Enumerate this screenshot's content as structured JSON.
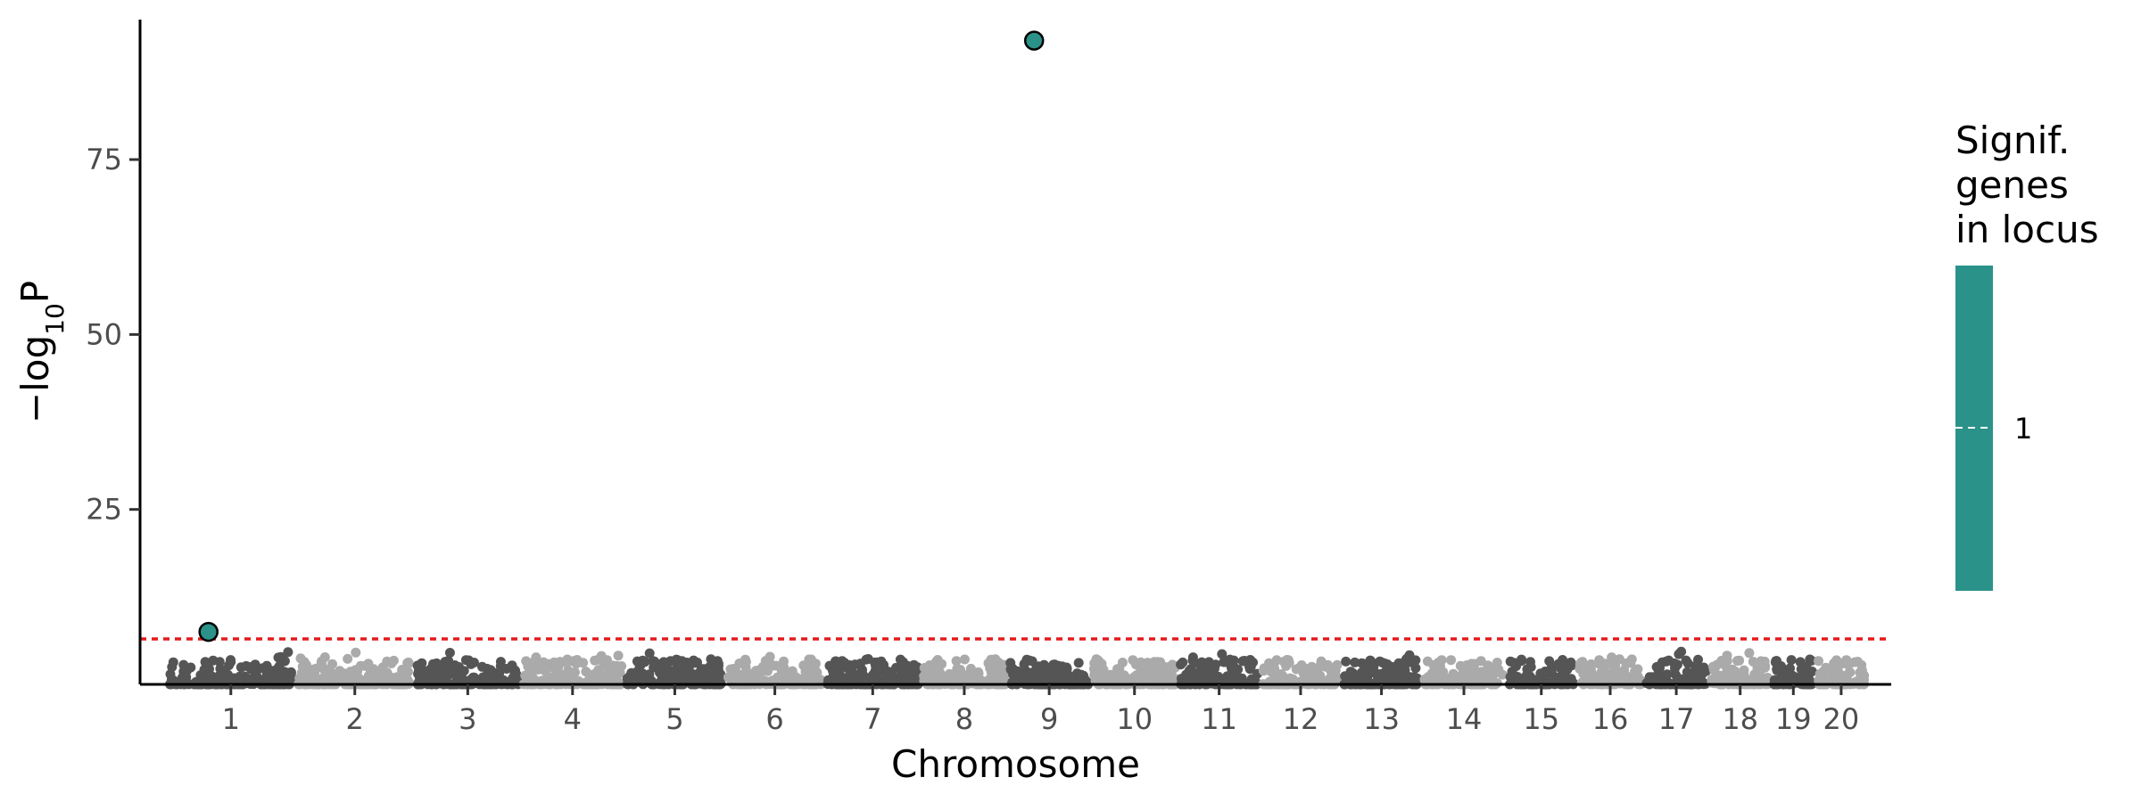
{
  "chart_data": {
    "type": "scatter",
    "title": "",
    "xlabel": "Chromosome",
    "ylabel": "−log10P",
    "ylabel_base": "−log",
    "ylabel_sub": "10",
    "ylabel_tail": "P",
    "ylim": [
      0,
      95
    ],
    "y_ticks": [
      25,
      50,
      75
    ],
    "significance_threshold": 6.5,
    "threshold_color": "#e41a1c",
    "chromosomes": [
      {
        "label": "1",
        "length": 195,
        "fill": "#555555"
      },
      {
        "label": "2",
        "length": 182,
        "fill": "#aaaaaa"
      },
      {
        "label": "3",
        "length": 160,
        "fill": "#555555"
      },
      {
        "label": "4",
        "length": 156,
        "fill": "#aaaaaa"
      },
      {
        "label": "5",
        "length": 152,
        "fill": "#555555"
      },
      {
        "label": "6",
        "length": 149,
        "fill": "#aaaaaa"
      },
      {
        "label": "7",
        "length": 145,
        "fill": "#555555"
      },
      {
        "label": "8",
        "length": 129,
        "fill": "#aaaaaa"
      },
      {
        "label": "9",
        "length": 124,
        "fill": "#555555"
      },
      {
        "label": "10",
        "length": 130,
        "fill": "#aaaaaa"
      },
      {
        "label": "11",
        "length": 122,
        "fill": "#555555"
      },
      {
        "label": "12",
        "length": 120,
        "fill": "#aaaaaa"
      },
      {
        "label": "13",
        "length": 120,
        "fill": "#555555"
      },
      {
        "label": "14",
        "length": 125,
        "fill": "#aaaaaa"
      },
      {
        "label": "15",
        "length": 104,
        "fill": "#555555"
      },
      {
        "label": "16",
        "length": 98,
        "fill": "#aaaaaa"
      },
      {
        "label": "17",
        "length": 95,
        "fill": "#555555"
      },
      {
        "label": "18",
        "length": 91,
        "fill": "#aaaaaa"
      },
      {
        "label": "19",
        "length": 61,
        "fill": "#555555"
      },
      {
        "label": "20",
        "length": 74,
        "fill": "#aaaaaa"
      }
    ],
    "significant_points": [
      {
        "chr": "1",
        "pos": 62,
        "neglog10p": 7.5,
        "genes_in_locus": 1
      },
      {
        "chr": "9",
        "pos": 38,
        "neglog10p": 92,
        "genes_in_locus": 1
      }
    ],
    "point_color": "#2a9289",
    "legend": {
      "title_lines": [
        "Signif.",
        "genes",
        "in locus"
      ],
      "labels": [
        "1"
      ],
      "colorbar_color": "#2a9289",
      "placement": "right"
    }
  }
}
